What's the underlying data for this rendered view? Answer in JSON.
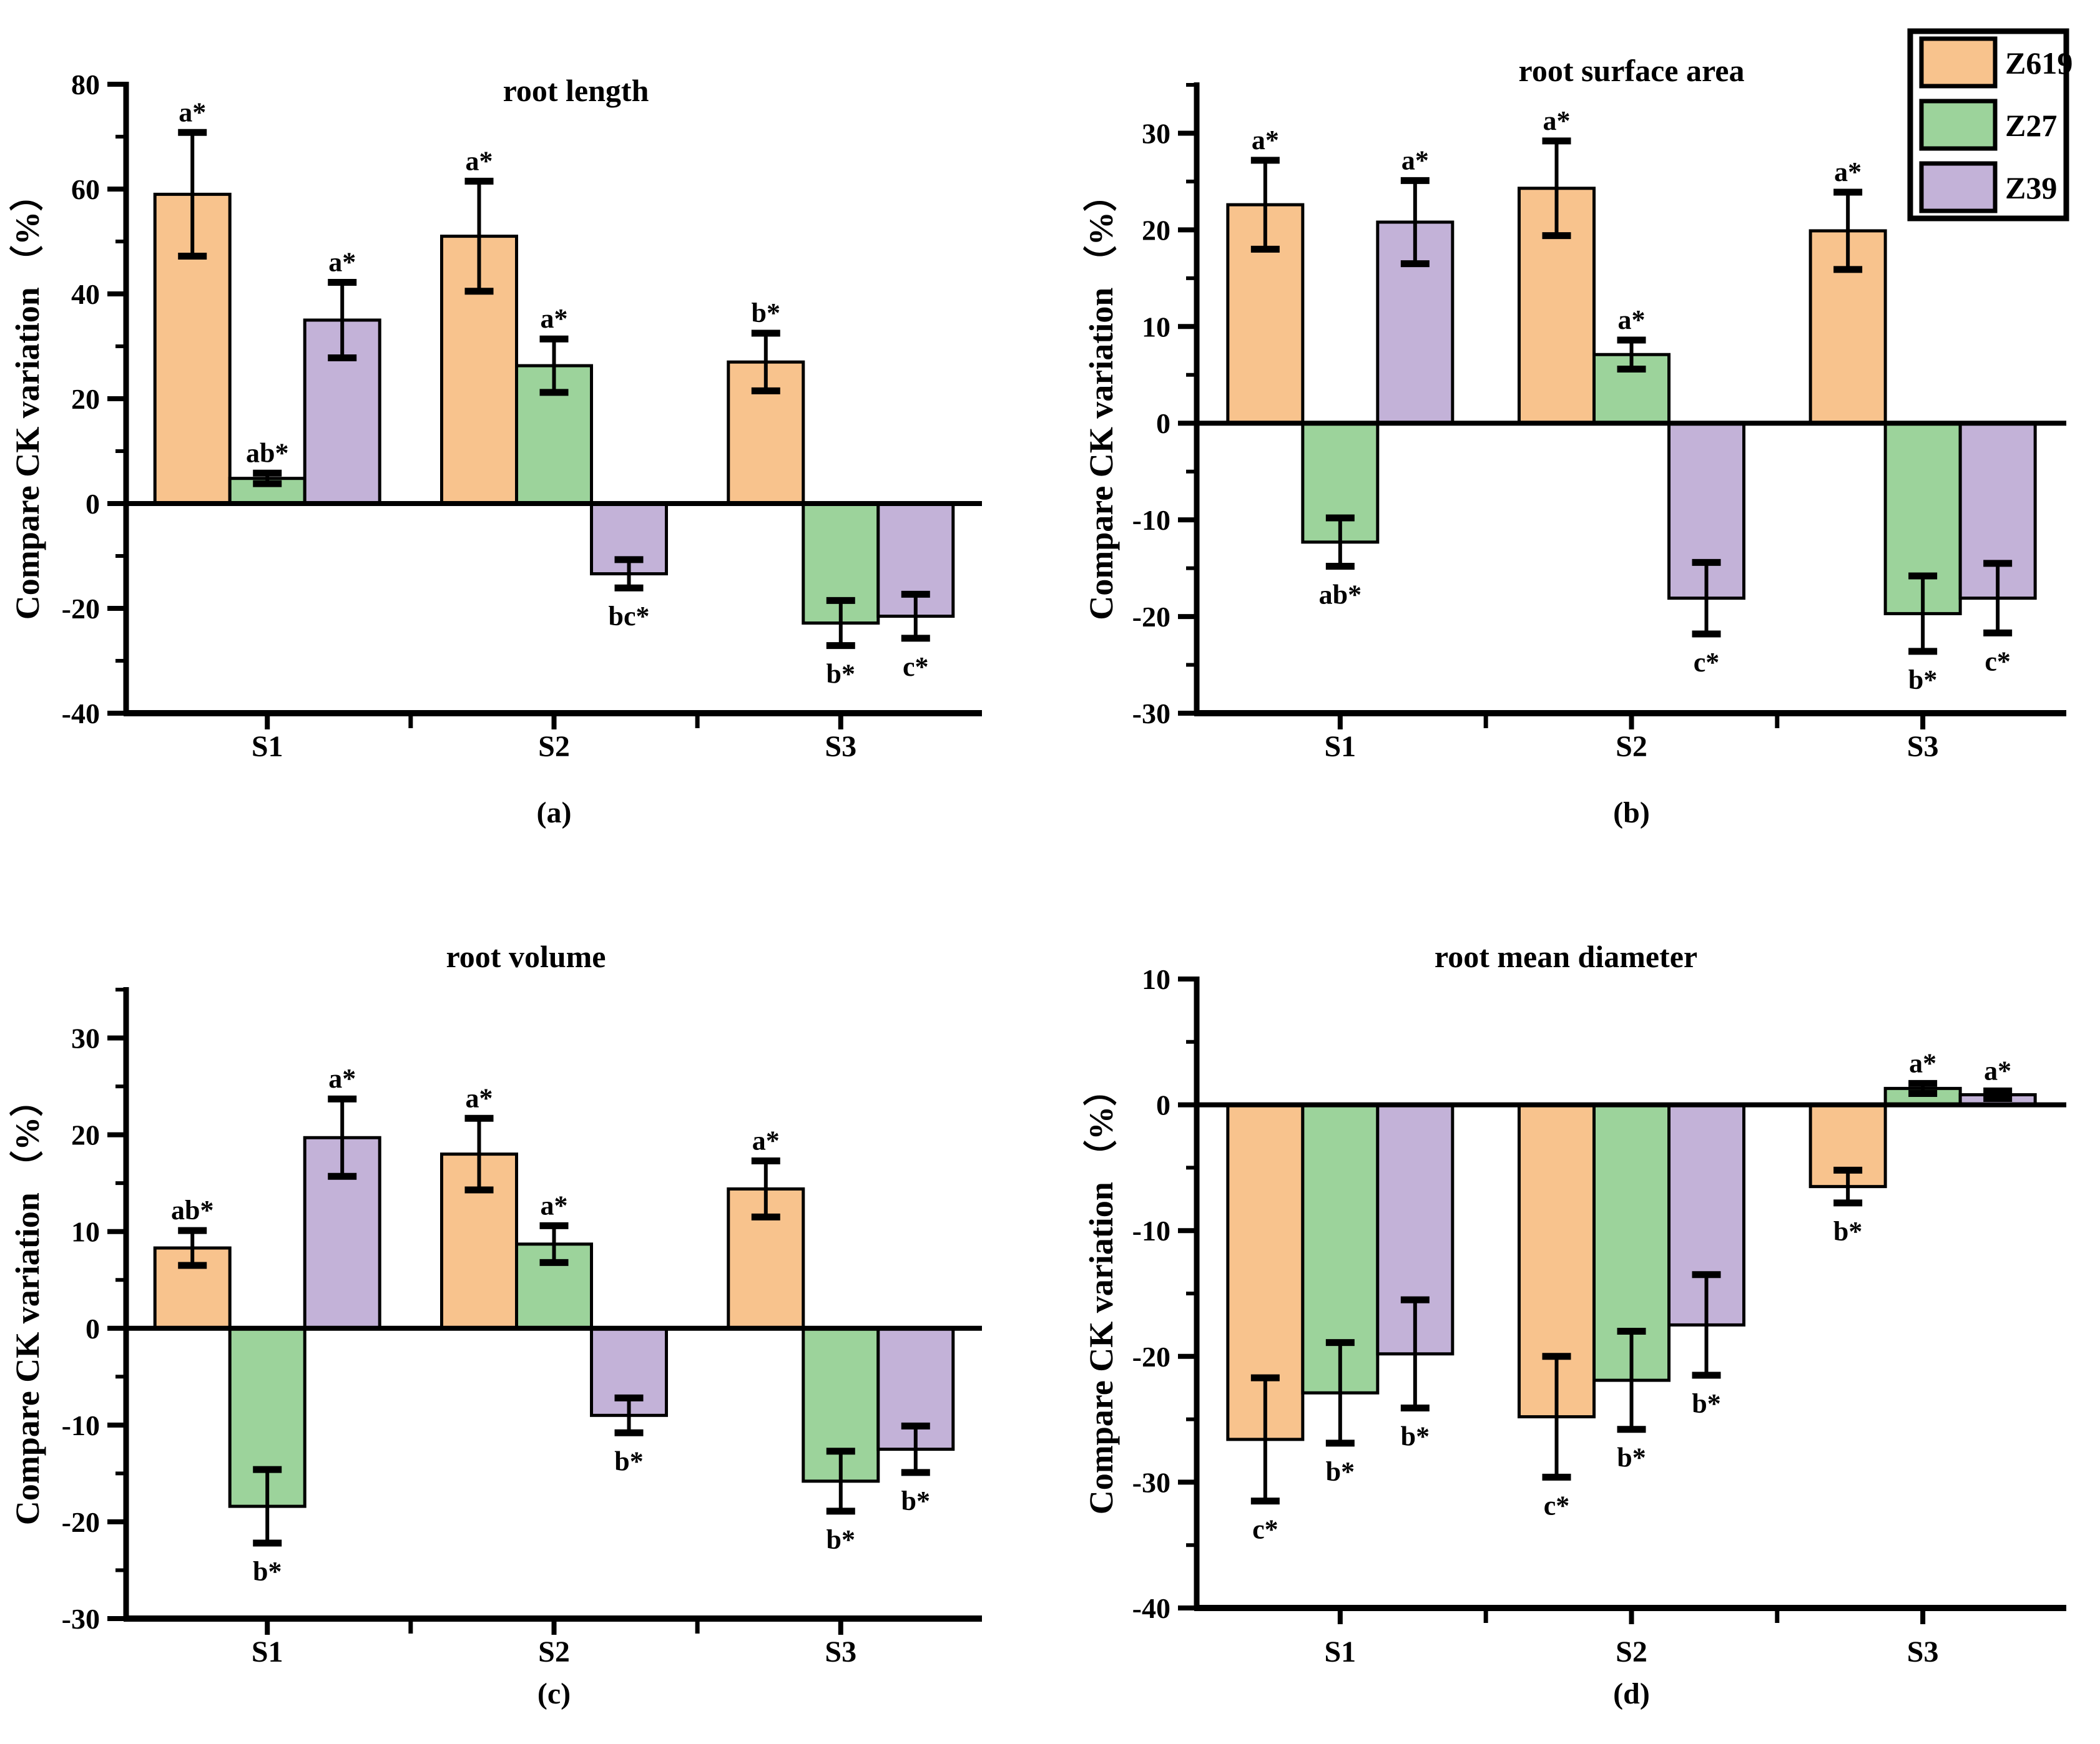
{
  "figure": {
    "background": "#ffffff",
    "y_axis_label": "Compare CK variation （%）",
    "legend": {
      "position": "top-right",
      "border_color": "#000000",
      "items": [
        {
          "label": "Z619",
          "color": "#F8C38D"
        },
        {
          "label": "Z27",
          "color": "#9CD39B"
        },
        {
          "label": "Z39",
          "color": "#C3B2D8"
        }
      ]
    }
  },
  "chart_data": [
    {
      "id": "a",
      "type": "bar",
      "title": "root length",
      "caption": "(a)",
      "ylabel": "Compare CK variation （%）",
      "categories": [
        "S1",
        "S2",
        "S3"
      ],
      "ylim": [
        -40,
        80
      ],
      "ytick_major": 20,
      "ytick_minor": 10,
      "grid": false,
      "legend_position": "none",
      "series": [
        {
          "name": "Z619",
          "color": "#F8C38D",
          "values": [
            59,
            51,
            27
          ],
          "errors": [
            11.8,
            10.5,
            5.5
          ],
          "sig": [
            "a*",
            "a*",
            "b*"
          ]
        },
        {
          "name": "Z27",
          "color": "#9CD39B",
          "values": [
            4.8,
            26.3,
            -22.8
          ],
          "errors": [
            1.0,
            5.1,
            4.3
          ],
          "sig": [
            "ab*",
            "a*",
            "b*"
          ]
        },
        {
          "name": "Z39",
          "color": "#C3B2D8",
          "values": [
            35,
            -13.4,
            -21.5
          ],
          "errors": [
            7.2,
            2.7,
            4.2
          ],
          "sig": [
            "a*",
            "bc*",
            "c*"
          ]
        }
      ]
    },
    {
      "id": "b",
      "type": "bar",
      "title": "root surface area",
      "caption": "(b)",
      "ylabel": "Compare CK variation （%）",
      "categories": [
        "S1",
        "S2",
        "S3"
      ],
      "ylim": [
        -30,
        35
      ],
      "ytick_major": 10,
      "ytick_minor": 5,
      "grid": false,
      "legend_position": "top-right",
      "series": [
        {
          "name": "Z619",
          "color": "#F8C38D",
          "values": [
            22.6,
            24.3,
            19.9
          ],
          "errors": [
            4.6,
            4.9,
            4.0
          ],
          "sig": [
            "a*",
            "a*",
            "a*"
          ]
        },
        {
          "name": "Z27",
          "color": "#9CD39B",
          "values": [
            -12.3,
            7.1,
            -19.7
          ],
          "errors": [
            2.5,
            1.5,
            3.9
          ],
          "sig": [
            "ab*",
            "a*",
            "b*"
          ]
        },
        {
          "name": "Z39",
          "color": "#C3B2D8",
          "values": [
            20.8,
            -18.1,
            -18.1
          ],
          "errors": [
            4.3,
            3.7,
            3.6
          ],
          "sig": [
            "a*",
            "c*",
            "c*"
          ]
        }
      ]
    },
    {
      "id": "c",
      "type": "bar",
      "title": "root volume",
      "caption": "(c)",
      "ylabel": "Compare CK variation （%）",
      "categories": [
        "S1",
        "S2",
        "S3"
      ],
      "ylim": [
        -30,
        35
      ],
      "ytick_major": 10,
      "ytick_minor": 5,
      "grid": false,
      "legend_position": "none",
      "series": [
        {
          "name": "Z619",
          "color": "#F8C38D",
          "values": [
            8.3,
            18.0,
            14.4
          ],
          "errors": [
            1.8,
            3.7,
            2.9
          ],
          "sig": [
            "ab*",
            "a*",
            "a*"
          ]
        },
        {
          "name": "Z27",
          "color": "#9CD39B",
          "values": [
            -18.4,
            8.7,
            -15.8
          ],
          "errors": [
            3.8,
            1.9,
            3.1
          ],
          "sig": [
            "b*",
            "a*",
            "b*"
          ]
        },
        {
          "name": "Z39",
          "color": "#C3B2D8",
          "values": [
            19.7,
            -9.0,
            -12.5
          ],
          "errors": [
            4.0,
            1.8,
            2.4
          ],
          "sig": [
            "a*",
            "b*",
            "b*"
          ]
        }
      ]
    },
    {
      "id": "d",
      "type": "bar",
      "title": "root mean diameter",
      "caption": "(d)",
      "ylabel": "Compare CK variation （%）",
      "categories": [
        "S1",
        "S2",
        "S3"
      ],
      "ylim": [
        -40,
        10
      ],
      "ytick_major": 10,
      "ytick_minor": 5,
      "grid": false,
      "legend_position": "none",
      "series": [
        {
          "name": "Z619",
          "color": "#F8C38D",
          "values": [
            -26.6,
            -24.8,
            -6.5
          ],
          "errors": [
            4.9,
            4.8,
            1.3
          ],
          "sig": [
            "c*",
            "c*",
            "b*"
          ]
        },
        {
          "name": "Z27",
          "color": "#9CD39B",
          "values": [
            -22.9,
            -21.9,
            1.3
          ],
          "errors": [
            4.0,
            3.9,
            0.4
          ],
          "sig": [
            "b*",
            "b*",
            "a*"
          ]
        },
        {
          "name": "Z39",
          "color": "#C3B2D8",
          "values": [
            -19.8,
            -17.5,
            0.8
          ],
          "errors": [
            4.3,
            4.0,
            0.3
          ],
          "sig": [
            "b*",
            "b*",
            "a*"
          ]
        }
      ]
    }
  ]
}
